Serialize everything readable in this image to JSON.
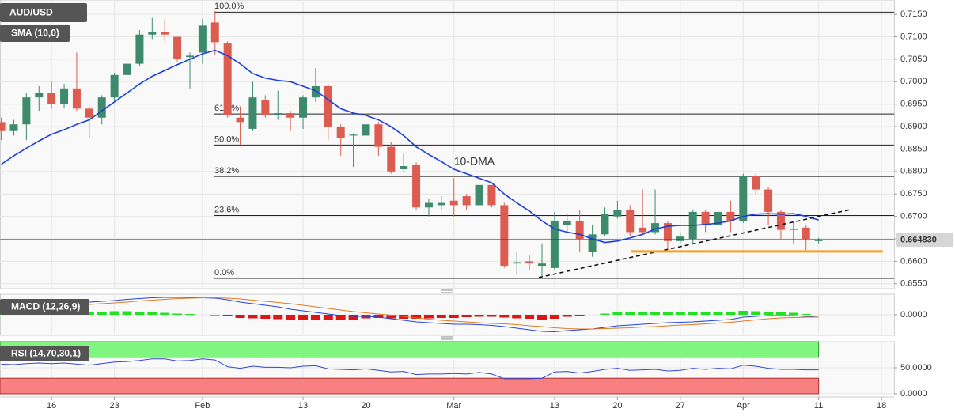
{
  "chart_data": [
    {
      "type": "candlestick",
      "title": "AUD/USD",
      "x": [
        0,
        1,
        2,
        3,
        4,
        5,
        6,
        7,
        8,
        9,
        10,
        11,
        12,
        13,
        14,
        15,
        16,
        17,
        18,
        19,
        20,
        21,
        22,
        23,
        24,
        25,
        26,
        27,
        28,
        29,
        30,
        31,
        32,
        33,
        34,
        35,
        36,
        37,
        38,
        39,
        40,
        41,
        42,
        43,
        44,
        45,
        46,
        47,
        48,
        49,
        50,
        51,
        52,
        53,
        54,
        55,
        56,
        57,
        58,
        59,
        60,
        61,
        62,
        63,
        64,
        65
      ],
      "open": [
        0.691,
        0.689,
        0.6905,
        0.6965,
        0.6975,
        0.695,
        0.6985,
        0.694,
        0.692,
        0.6965,
        0.7015,
        0.704,
        0.7105,
        0.711,
        0.71,
        0.7055,
        0.7065,
        0.7132,
        0.7085,
        0.692,
        0.6895,
        0.696,
        0.6925,
        0.693,
        0.692,
        0.6965,
        0.699,
        0.69,
        0.688,
        0.688,
        0.6905,
        0.6855,
        0.6805,
        0.6815,
        0.672,
        0.6725,
        0.6735,
        0.6745,
        0.6725,
        0.677,
        0.6725,
        0.6595,
        0.66,
        0.659,
        0.6585,
        0.668,
        0.669,
        0.662,
        0.666,
        0.67,
        0.6715,
        0.6675,
        0.6665,
        0.6685,
        0.6645,
        0.665,
        0.671,
        0.668,
        0.671,
        0.669,
        0.679,
        0.676,
        0.671,
        0.667,
        0.6675,
        0.6645
      ],
      "high": [
        0.692,
        0.6915,
        0.6975,
        0.699,
        0.7,
        0.6995,
        0.7065,
        0.6945,
        0.697,
        0.702,
        0.705,
        0.7115,
        0.7142,
        0.714,
        0.71,
        0.7065,
        0.714,
        0.7157,
        0.709,
        0.6945,
        0.7,
        0.697,
        0.698,
        0.6935,
        0.697,
        0.703,
        0.6995,
        0.6905,
        0.6885,
        0.691,
        0.691,
        0.6865,
        0.684,
        0.682,
        0.674,
        0.6745,
        0.6785,
        0.675,
        0.6775,
        0.677,
        0.673,
        0.662,
        0.6615,
        0.664,
        0.671,
        0.6705,
        0.6715,
        0.668,
        0.672,
        0.6735,
        0.6725,
        0.676,
        0.676,
        0.669,
        0.6665,
        0.6715,
        0.6715,
        0.6715,
        0.6735,
        0.6795,
        0.6795,
        0.6765,
        0.6715,
        0.669,
        0.668,
        0.6652
      ],
      "low": [
        0.687,
        0.688,
        0.687,
        0.6935,
        0.694,
        0.694,
        0.6935,
        0.6875,
        0.6905,
        0.6955,
        0.7005,
        0.7035,
        0.7095,
        0.709,
        0.7045,
        0.6985,
        0.704,
        0.706,
        0.692,
        0.686,
        0.689,
        0.692,
        0.6915,
        0.689,
        0.6895,
        0.6955,
        0.687,
        0.6835,
        0.681,
        0.686,
        0.6835,
        0.6795,
        0.68,
        0.6715,
        0.67,
        0.6715,
        0.67,
        0.6715,
        0.672,
        0.672,
        0.6585,
        0.657,
        0.658,
        0.6565,
        0.658,
        0.6665,
        0.662,
        0.661,
        0.6655,
        0.6695,
        0.6655,
        0.666,
        0.666,
        0.6625,
        0.664,
        0.664,
        0.6665,
        0.6665,
        0.6665,
        0.6685,
        0.675,
        0.668,
        0.665,
        0.664,
        0.6625,
        0.664
      ],
      "close": [
        0.689,
        0.6905,
        0.6965,
        0.6975,
        0.695,
        0.6985,
        0.694,
        0.692,
        0.6965,
        0.7015,
        0.704,
        0.7105,
        0.711,
        0.7105,
        0.705,
        0.7058,
        0.7125,
        0.7088,
        0.6925,
        0.691,
        0.6965,
        0.6925,
        0.693,
        0.692,
        0.6965,
        0.699,
        0.69,
        0.6875,
        0.6882,
        0.6905,
        0.6855,
        0.68,
        0.6812,
        0.672,
        0.673,
        0.673,
        0.6725,
        0.6725,
        0.677,
        0.6725,
        0.659,
        0.6598,
        0.6595,
        0.6595,
        0.669,
        0.669,
        0.665,
        0.666,
        0.6705,
        0.6715,
        0.6665,
        0.6665,
        0.6685,
        0.6645,
        0.6655,
        0.671,
        0.668,
        0.671,
        0.669,
        0.679,
        0.676,
        0.671,
        0.667,
        0.6672,
        0.665,
        0.6648
      ],
      "up_color": "#3d8a6d",
      "down_color": "#dc5d4f",
      "series": [
        {
          "name": "SMA (10,0)",
          "color": "#1b3ee0",
          "values": [
            0.6816,
            0.6835,
            0.6852,
            0.6868,
            0.6883,
            0.6893,
            0.6905,
            0.6915,
            0.6935,
            0.6955,
            0.6975,
            0.6995,
            0.7012,
            0.7025,
            0.7038,
            0.705,
            0.7062,
            0.707,
            0.7058,
            0.704,
            0.7018,
            0.7008,
            0.7003,
            0.7,
            0.699,
            0.698,
            0.696,
            0.694,
            0.693,
            0.6925,
            0.6915,
            0.69,
            0.688,
            0.6855,
            0.6838,
            0.6822,
            0.6805,
            0.6795,
            0.6785,
            0.6775,
            0.675,
            0.673,
            0.6712,
            0.669,
            0.6672,
            0.6665,
            0.666,
            0.665,
            0.6642,
            0.6645,
            0.6652,
            0.666,
            0.6672,
            0.6678,
            0.668,
            0.668,
            0.6682,
            0.6685,
            0.669,
            0.67,
            0.6705,
            0.6706,
            0.6705,
            0.6706,
            0.67,
            0.6692
          ]
        }
      ],
      "annotations": [
        {
          "text": "10-DMA",
          "x": 36,
          "y": 0.6821,
          "color": "#5a55c8"
        }
      ],
      "fib_levels": [
        {
          "label": "100.0%",
          "value": 0.7155
        },
        {
          "label": "61.8%",
          "value": 0.6928
        },
        {
          "label": "50.0%",
          "value": 0.6859
        },
        {
          "label": "38.2%",
          "value": 0.6789
        },
        {
          "label": "23.6%",
          "value": 0.6702
        },
        {
          "label": "0.0%",
          "value": 0.6562
        }
      ],
      "trendlines": [
        {
          "x": [
            42.75,
            67.5
          ],
          "y": [
            0.6564,
            0.6715
          ],
          "color": "#111111"
        }
      ],
      "support": {
        "x": [
          50.1,
          70.1
        ],
        "y": 0.6622,
        "color": "#f5a01e"
      },
      "last_price": {
        "value": 0.66483,
        "label": "0.664830",
        "color": "#26346e"
      },
      "xlim": [
        -0.1,
        71
      ],
      "ylim": [
        0.6539,
        0.7182
      ],
      "xticks": [
        {
          "value": 4,
          "label": "16"
        },
        {
          "value": 9,
          "label": "23"
        },
        {
          "value": 16,
          "label": "Feb"
        },
        {
          "value": 24,
          "label": "13"
        },
        {
          "value": 29,
          "label": "20"
        },
        {
          "value": 36,
          "label": "Mar"
        },
        {
          "value": 44,
          "label": "13"
        },
        {
          "value": 49,
          "label": "20"
        },
        {
          "value": 54,
          "label": "27"
        },
        {
          "value": 59,
          "label": "Apr"
        },
        {
          "value": 65,
          "label": "11"
        },
        {
          "value": 70,
          "label": "18"
        }
      ],
      "yticks": [
        {
          "value": 0.655,
          "label": "0.6550"
        },
        {
          "value": 0.66,
          "label": "0.6600"
        },
        {
          "value": 0.665,
          "label": "0.6650"
        },
        {
          "value": 0.67,
          "label": "0.6700"
        },
        {
          "value": 0.675,
          "label": "0.6750"
        },
        {
          "value": 0.68,
          "label": "0.6800"
        },
        {
          "value": 0.685,
          "label": "0.6850"
        },
        {
          "value": 0.69,
          "label": "0.6900"
        },
        {
          "value": 0.695,
          "label": "0.6950"
        },
        {
          "value": 0.7,
          "label": "0.7000"
        },
        {
          "value": 0.705,
          "label": "0.7050"
        },
        {
          "value": 0.71,
          "label": "0.7100"
        },
        {
          "value": 0.715,
          "label": "0.7150"
        }
      ],
      "grid": true
    },
    {
      "type": "macd",
      "title": "MACD (12,26,9)",
      "x": [
        0,
        1,
        2,
        3,
        4,
        5,
        6,
        7,
        8,
        9,
        10,
        11,
        12,
        13,
        14,
        15,
        16,
        17,
        18,
        19,
        20,
        21,
        22,
        23,
        24,
        25,
        26,
        27,
        28,
        29,
        30,
        31,
        32,
        33,
        34,
        35,
        36,
        37,
        38,
        39,
        40,
        41,
        42,
        43,
        44,
        45,
        46,
        47,
        48,
        49,
        50,
        51,
        52,
        53,
        54,
        55,
        56,
        57,
        58,
        59,
        60,
        61,
        62,
        63,
        64,
        65
      ],
      "histogram": [
        0.0004,
        0.0004,
        0.0005,
        0.0005,
        0.0005,
        0.0005,
        0.0006,
        0.0006,
        0.0006,
        0.0009,
        0.0009,
        0.0008,
        0.0006,
        0.0005,
        0.0003,
        0.0002,
        0,
        -0.0001,
        -0.0004,
        -0.0008,
        -0.0009,
        -0.001,
        -0.0011,
        -0.0014,
        -0.0014,
        -0.0014,
        -0.0014,
        -0.0014,
        -0.0012,
        -0.0009,
        -0.0008,
        -0.0009,
        -0.001,
        -0.001,
        -0.0009,
        -0.0008,
        -0.0008,
        -0.0006,
        -0.0005,
        -0.0005,
        -0.0007,
        -0.0009,
        -0.001,
        -0.0012,
        -0.001,
        -0.0005,
        -0.0002,
        0,
        0.0003,
        0.0006,
        0.0007,
        0.0007,
        0.0008,
        0.0008,
        0.0007,
        0.0007,
        0.0007,
        0.0007,
        0.0007,
        0.001,
        0.0009,
        0.0008,
        0.0006,
        0.0005,
        0.0002,
        0
      ],
      "up_color": "#22e022",
      "down_color": "#e01414",
      "series": [
        {
          "color": "#2446e0",
          "values": [
            0.002,
            0.0022,
            0.0024,
            0.0025,
            0.0026,
            0.0028,
            0.003,
            0.0032,
            0.0034,
            0.0036,
            0.0039,
            0.0041,
            0.0043,
            0.0044,
            0.0044,
            0.0044,
            0.0043,
            0.0042,
            0.0038,
            0.0032,
            0.0028,
            0.0024,
            0.002,
            0.0014,
            0.001,
            0.0006,
            0.0002,
            -0.0002,
            -0.0004,
            -0.0004,
            -0.0006,
            -0.001,
            -0.0014,
            -0.0018,
            -0.002,
            -0.0022,
            -0.0024,
            -0.0024,
            -0.0025,
            -0.0027,
            -0.003,
            -0.0034,
            -0.0038,
            -0.0042,
            -0.0043,
            -0.004,
            -0.0038,
            -0.0036,
            -0.0032,
            -0.0028,
            -0.0026,
            -0.0024,
            -0.0022,
            -0.002,
            -0.0019,
            -0.0018,
            -0.0016,
            -0.0014,
            -0.0012,
            -0.0006,
            -0.0004,
            -0.0002,
            -0.0002,
            -0.0002,
            -0.0004,
            -0.0006
          ]
        },
        {
          "color": "#e07b22",
          "values": [
            0.0016,
            0.0018,
            0.0019,
            0.002,
            0.0021,
            0.0023,
            0.0024,
            0.0026,
            0.0028,
            0.003,
            0.0032,
            0.0035,
            0.0037,
            0.0039,
            0.0041,
            0.0042,
            0.0043,
            0.0043,
            0.0042,
            0.004,
            0.0037,
            0.0034,
            0.0031,
            0.0028,
            0.0024,
            0.002,
            0.0016,
            0.0012,
            0.0008,
            0.0005,
            0.0002,
            -0.0001,
            -0.0004,
            -0.0008,
            -0.0011,
            -0.0014,
            -0.0016,
            -0.0018,
            -0.002,
            -0.0022,
            -0.0023,
            -0.0025,
            -0.0028,
            -0.003,
            -0.0033,
            -0.0035,
            -0.0036,
            -0.0036,
            -0.0035,
            -0.0034,
            -0.0033,
            -0.0031,
            -0.003,
            -0.0028,
            -0.0026,
            -0.0025,
            -0.0023,
            -0.0021,
            -0.0019,
            -0.0016,
            -0.0013,
            -0.001,
            -0.0008,
            -0.0007,
            -0.0006,
            -0.0006
          ]
        }
      ],
      "xlim": [
        -0.1,
        71
      ],
      "ylim": [
        -0.0052,
        0.0052
      ],
      "yticks": [
        {
          "value": 0,
          "label": "0.0000"
        }
      ],
      "grid": true
    },
    {
      "type": "rsi",
      "title": "RSI (14,70,30,1)",
      "x": [
        0,
        1,
        2,
        3,
        4,
        5,
        6,
        7,
        8,
        9,
        10,
        11,
        12,
        13,
        14,
        15,
        16,
        17,
        18,
        19,
        20,
        21,
        22,
        23,
        24,
        25,
        26,
        27,
        28,
        29,
        30,
        31,
        32,
        33,
        34,
        35,
        36,
        37,
        38,
        39,
        40,
        41,
        42,
        43,
        44,
        45,
        46,
        47,
        48,
        49,
        50,
        51,
        52,
        53,
        54,
        55,
        56,
        57,
        58,
        59,
        60,
        61,
        62,
        63,
        64,
        65
      ],
      "values": [
        57,
        56,
        58,
        59,
        58,
        59,
        57,
        55,
        58,
        61,
        62,
        64,
        67,
        67,
        63,
        64,
        67,
        65,
        52,
        49,
        53,
        51,
        51,
        50,
        53,
        54,
        48,
        47,
        46,
        48,
        45,
        42,
        43,
        37,
        38,
        38,
        39,
        38,
        41,
        38,
        29,
        29,
        29,
        30,
        42,
        43,
        40,
        43,
        47,
        49,
        45,
        46,
        47,
        44,
        45,
        49,
        47,
        49,
        48,
        55,
        53,
        49,
        47,
        47,
        46,
        46
      ],
      "color": "#3346d6",
      "overbought": 70,
      "oversold": 30,
      "overbought_color": "#80f580",
      "oversold_color": "#f78080",
      "xlim": [
        -0.1,
        71
      ],
      "ylim": [
        0,
        100
      ],
      "yticks": [
        {
          "value": 50,
          "label": "50.0000"
        },
        {
          "value": 0,
          "label": "0.0000"
        }
      ],
      "grid": true
    }
  ]
}
